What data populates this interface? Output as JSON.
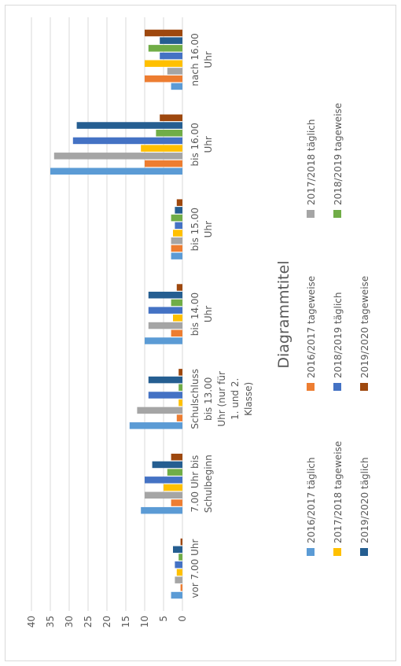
{
  "chart_data": {
    "type": "bar",
    "orientation": "vertical-rotated",
    "title": "Diagrammtitel",
    "xlabel": "",
    "ylabel": "",
    "ylim": [
      0,
      40
    ],
    "yticks": [
      "0",
      "5",
      "10",
      "15",
      "20",
      "25",
      "30",
      "35",
      "40"
    ],
    "grid": true,
    "legend_position": "bottom",
    "categories": [
      [
        "vor 7.00 Uhr"
      ],
      [
        "7.00 Uhr bis",
        "Schulbeginn"
      ],
      [
        "Schulschluss",
        "bis 13.00",
        "Uhr (nur für",
        "1. und 2.",
        "Klasse)"
      ],
      [
        "bis 14.00",
        "Uhr"
      ],
      [
        "bis 15.00",
        "Uhr"
      ],
      [
        "bis 16.00",
        "Uhr"
      ],
      [
        "nach 16.00",
        "Uhr"
      ]
    ],
    "series": [
      {
        "name": "2016/2017 täglich",
        "color": "#5b9bd5",
        "values": [
          3,
          11,
          14,
          10,
          3,
          35,
          3
        ]
      },
      {
        "name": "2016/2017 tageweise",
        "color": "#ed7d31",
        "values": [
          0.5,
          3,
          1.5,
          3,
          3,
          10,
          10
        ]
      },
      {
        "name": "2017/2018 täglich",
        "color": "#a5a5a5",
        "values": [
          2,
          10,
          12,
          9,
          3,
          34,
          4
        ]
      },
      {
        "name": "2017/2018 tageweise",
        "color": "#ffc000",
        "values": [
          1.5,
          5,
          1,
          2.5,
          2.5,
          11,
          10
        ]
      },
      {
        "name": "2018/2019 täglich",
        "color": "#4472c4",
        "values": [
          2,
          10,
          9,
          9,
          2,
          29,
          6
        ]
      },
      {
        "name": "2018/2019 tageweise",
        "color": "#70ad47",
        "values": [
          1,
          4,
          1,
          3,
          3,
          7,
          9
        ]
      },
      {
        "name": "2019/2020 täglich",
        "color": "#255e91",
        "values": [
          2.5,
          8,
          9,
          9,
          2,
          28,
          6
        ]
      },
      {
        "name": "2019/2020 tageweise",
        "color": "#9e480e",
        "values": [
          0.5,
          3,
          1,
          1.5,
          1.5,
          6,
          10
        ]
      }
    ]
  }
}
